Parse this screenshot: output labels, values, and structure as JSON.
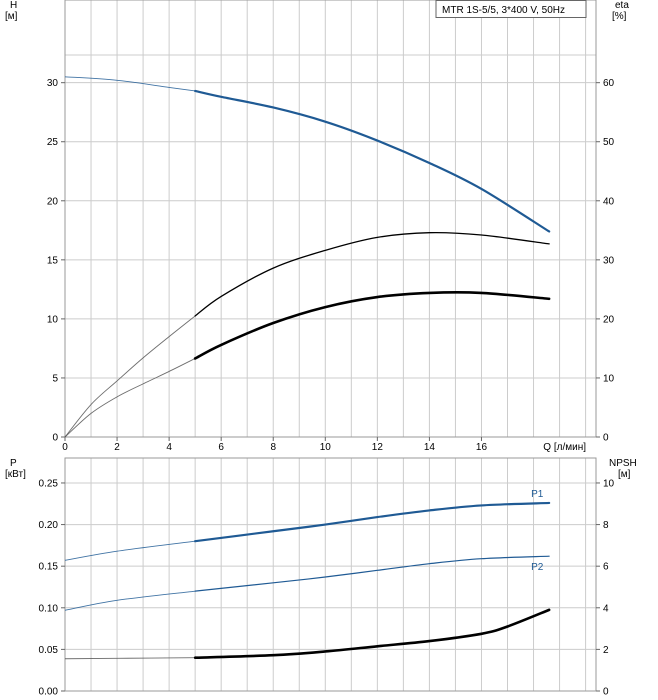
{
  "chart_data": [
    {
      "type": "line",
      "title": "MTR 1S-5/5, 3*400 V, 50Hz",
      "xlabel": "Q [л/мин]",
      "ylabel_left": [
        "H",
        "[м]"
      ],
      "ylabel_right": [
        "eta",
        "[%]"
      ],
      "xlim": [
        0,
        20.4
      ],
      "ylim_left": [
        0,
        37
      ],
      "ylim_right": [
        0,
        74
      ],
      "xticks": [
        0,
        2,
        4,
        6,
        8,
        10,
        12,
        14,
        16
      ],
      "yticks_left": [
        0,
        5,
        10,
        15,
        20,
        25,
        30
      ],
      "yticks_right": [
        0,
        10,
        20,
        30,
        40,
        50,
        60
      ],
      "grid": true,
      "operating_range_start": 5,
      "series": [
        {
          "name": "",
          "axis": "left",
          "color": "#1f5a94",
          "x": [
            0,
            2,
            4,
            5,
            6,
            8,
            10,
            12,
            14,
            16,
            18.6
          ],
          "y": [
            30.5,
            30.2,
            29.6,
            29.3,
            28.8,
            27.9,
            26.7,
            25.1,
            23.2,
            21.0,
            17.4
          ]
        },
        {
          "name": "",
          "axis": "right",
          "color": "#000000",
          "x": [
            0,
            1,
            2,
            3,
            4,
            5,
            6,
            8,
            10,
            12,
            14,
            16,
            18.6
          ],
          "y": [
            0,
            5.5,
            9.5,
            13.4,
            17.0,
            20.5,
            23.8,
            28.6,
            31.6,
            33.8,
            34.6,
            34.2,
            32.7
          ]
        },
        {
          "name": "",
          "axis": "right",
          "color": "#000000",
          "x": [
            0,
            1,
            2,
            3,
            4,
            5,
            6,
            8,
            10,
            12,
            14,
            16,
            18.6
          ],
          "y": [
            0,
            4.0,
            6.8,
            9.0,
            11.1,
            13.3,
            15.6,
            19.3,
            22.0,
            23.7,
            24.4,
            24.4,
            23.4
          ]
        }
      ]
    },
    {
      "type": "line",
      "ylabel_left": [
        "P",
        "[кВт]"
      ],
      "ylabel_right": [
        "NPSH",
        "[м]"
      ],
      "xlim": [
        0,
        20.4
      ],
      "ylim_left": [
        0,
        0.28
      ],
      "ylim_right": [
        0,
        11.2
      ],
      "yticks_left": [
        "0.00",
        "0.05",
        "0.10",
        "0.15",
        "0.20",
        "0.25"
      ],
      "yticks_right": [
        0,
        2,
        4,
        6,
        8,
        10
      ],
      "grid": true,
      "operating_range_start": 5,
      "series": [
        {
          "name": "P1",
          "axis": "left",
          "color": "#1f5a94",
          "x": [
            0,
            2,
            5,
            8,
            10,
            12,
            14,
            16,
            18.6
          ],
          "y": [
            0.157,
            0.168,
            0.18,
            0.192,
            0.2,
            0.209,
            0.217,
            0.223,
            0.226
          ]
        },
        {
          "name": "P2",
          "axis": "left",
          "color": "#1f5a94",
          "x": [
            0,
            2,
            5,
            8,
            10,
            12,
            14,
            16,
            18.6
          ],
          "y": [
            0.097,
            0.109,
            0.12,
            0.13,
            0.137,
            0.145,
            0.153,
            0.159,
            0.162
          ]
        },
        {
          "name": "",
          "axis": "right",
          "color": "#000000",
          "x": [
            0,
            2,
            5,
            8,
            10,
            12,
            14,
            16,
            17,
            18.6
          ],
          "y": [
            1.55,
            1.57,
            1.6,
            1.72,
            1.9,
            2.15,
            2.4,
            2.75,
            3.1,
            3.9
          ]
        }
      ]
    }
  ]
}
